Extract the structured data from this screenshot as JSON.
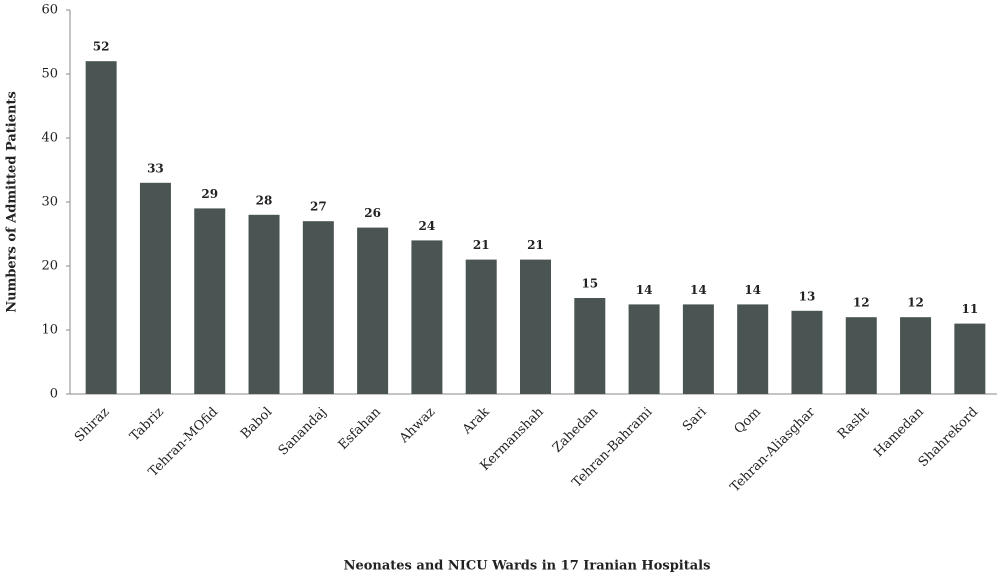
{
  "chart_data": {
    "type": "bar",
    "xlabel": "Neonates and NICU Wards in 17 Iranian Hospitals",
    "ylabel": "Numbers of Admitted Patients",
    "categories": [
      "Shiraz",
      "Tabriz",
      "Tehran-MOfid",
      "Babol",
      "Sanandaj",
      "Esfahan",
      "Ahwaz",
      "Arak",
      "Kermanshah",
      "Zahedan",
      "Tehran-Bahrami",
      "Sari",
      "Qom",
      "Tehran-Aliasghar",
      "Rasht",
      "Hamedan",
      "Shahrekord"
    ],
    "values": [
      52,
      33,
      29,
      28,
      27,
      26,
      24,
      21,
      21,
      15,
      14,
      14,
      14,
      13,
      12,
      12,
      11
    ],
    "color": "#4a5553",
    "ylim": [
      0,
      60
    ],
    "yticks": [
      0,
      10,
      20,
      30,
      40,
      50,
      60
    ],
    "grid": false
  }
}
